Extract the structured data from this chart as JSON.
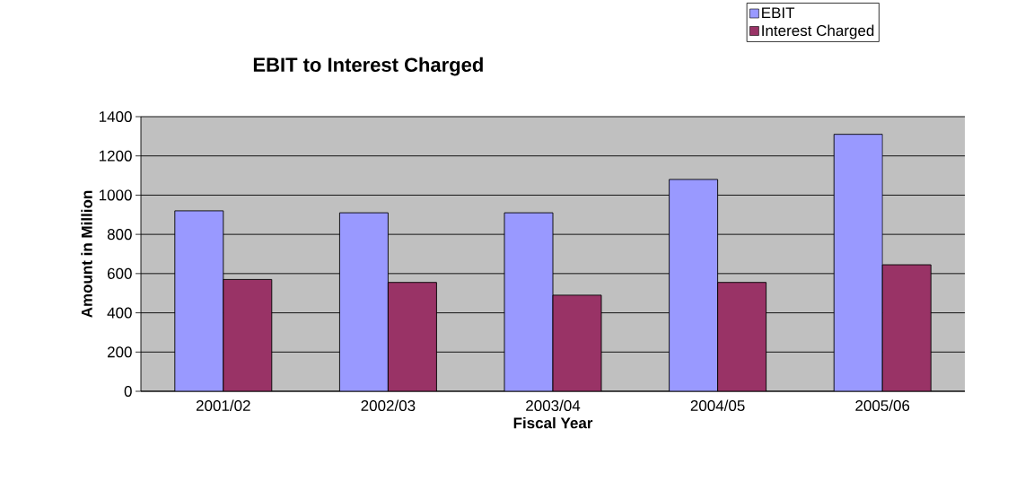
{
  "chart_data": {
    "type": "bar",
    "title": "EBIT to Interest Charged",
    "xlabel": "Fiscal Year",
    "ylabel": "Amount in Million",
    "categories": [
      "2001/02",
      "2002/03",
      "2003/04",
      "2004/05",
      "2005/06"
    ],
    "series": [
      {
        "name": "EBIT",
        "color": "#9999ff",
        "values": [
          920,
          910,
          910,
          1080,
          1310
        ]
      },
      {
        "name": "Interest Charged",
        "color": "#993366",
        "values": [
          570,
          555,
          490,
          555,
          645
        ]
      }
    ],
    "ylim": [
      0,
      1400
    ],
    "yticks": [
      0,
      200,
      400,
      600,
      800,
      1000,
      1200,
      1400
    ],
    "grid": "y",
    "legend": "top right"
  }
}
